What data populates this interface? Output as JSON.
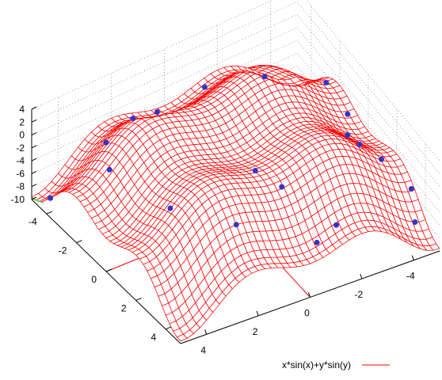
{
  "chart_data": {
    "type": "surface",
    "function": "x*sin(x)+y*sin(y)",
    "x_range": [
      -5,
      5
    ],
    "y_range": [
      -5,
      5
    ],
    "zlim": [
      -10,
      4
    ],
    "x_ticks": [
      "4",
      "2",
      "0",
      "-2",
      "-4"
    ],
    "y_ticks": [
      "-4",
      "-2",
      "0",
      "2",
      "4"
    ],
    "z_ticks": [
      "4",
      "2",
      "0",
      "-2",
      "-4",
      "-6",
      "-8",
      "-10"
    ],
    "grid": "dotted back walls",
    "legend": {
      "position": "bottom-right",
      "entries": [
        {
          "label": "x*sin(x)+y*sin(y)",
          "color": "#ff0000"
        }
      ]
    },
    "colors": {
      "surface": "#ff0000",
      "points": "#3333cc",
      "underside": "#66cc33"
    },
    "points": [
      {
        "x": 1.4,
        "y": -4.6
      },
      {
        "x": -1.3,
        "y": -4.6
      },
      {
        "x": -3.4,
        "y": -4.3
      },
      {
        "x": 1.6,
        "y": -2.6
      },
      {
        "x": 4.8,
        "y": -4.1
      },
      {
        "x": 3.2,
        "y": -3.2
      },
      {
        "x": -4.7,
        "y": -2.4
      },
      {
        "x": -4.7,
        "y": -0.9
      },
      {
        "x": -4.1,
        "y": 0.2
      },
      {
        "x": -3.9,
        "y": 1.4
      },
      {
        "x": -4.3,
        "y": 2.2
      },
      {
        "x": -4.9,
        "y": 3.2
      },
      {
        "x": -4.6,
        "y": 4.0
      },
      {
        "x": -1.4,
        "y": 4.3
      },
      {
        "x": -0.6,
        "y": 4.4
      },
      {
        "x": -0.2,
        "y": 2.7
      },
      {
        "x": 0.2,
        "y": 1.6
      },
      {
        "x": 2.0,
        "y": 3.5
      },
      {
        "x": 3.4,
        "y": 1.5
      },
      {
        "x": 3.8,
        "y": -1.9
      }
    ]
  }
}
